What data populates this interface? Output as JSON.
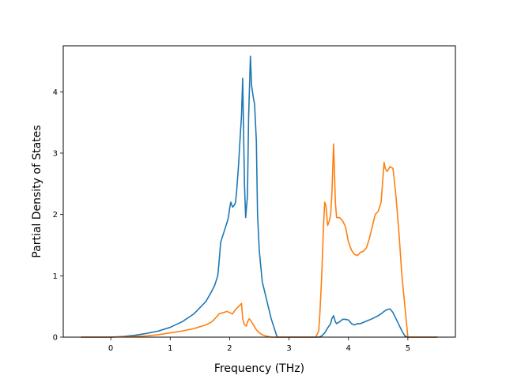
{
  "chart_data": {
    "type": "line",
    "title": "",
    "xlabel": "Frequency (THz)",
    "ylabel": "Partial Density of States",
    "xlim": [
      -0.8,
      5.8
    ],
    "ylim": [
      0,
      4.75
    ],
    "xticks": [
      "0",
      "1",
      "2",
      "3",
      "4",
      "5"
    ],
    "yticks": [
      "0",
      "1",
      "2",
      "3",
      "4"
    ],
    "grid": false,
    "legend": "none",
    "colors": {
      "series1": "#1f77b4",
      "series2": "#ff7f0e"
    },
    "series": [
      {
        "x": [
          -0.5,
          0.0,
          0.2,
          0.4,
          0.6,
          0.8,
          1.0,
          1.2,
          1.4,
          1.6,
          1.7,
          1.75,
          1.8,
          1.82,
          1.85,
          1.9,
          1.95,
          1.98,
          2.0,
          2.02,
          2.05,
          2.08,
          2.1,
          2.12,
          2.15,
          2.18,
          2.2,
          2.22,
          2.25,
          2.27,
          2.3,
          2.32,
          2.35,
          2.37,
          2.4,
          2.42,
          2.45,
          2.47,
          2.5,
          2.52,
          2.55,
          2.6,
          2.65,
          2.7,
          2.75,
          2.8,
          2.82,
          3.0,
          3.2,
          3.4,
          3.5,
          3.55,
          3.6,
          3.65,
          3.7,
          3.72,
          3.75,
          3.78,
          3.8,
          3.85,
          3.9,
          3.95,
          4.0,
          4.05,
          4.1,
          4.15,
          4.2,
          4.3,
          4.4,
          4.5,
          4.55,
          4.6,
          4.65,
          4.7,
          4.75,
          4.8,
          4.85,
          4.9,
          4.95,
          5.0,
          5.2,
          5.5
        ],
        "y": [
          0.0,
          0.0,
          0.01,
          0.03,
          0.06,
          0.1,
          0.16,
          0.25,
          0.38,
          0.58,
          0.75,
          0.85,
          1.0,
          1.2,
          1.55,
          1.7,
          1.85,
          1.95,
          2.1,
          2.2,
          2.12,
          2.15,
          2.2,
          2.4,
          2.8,
          3.3,
          3.6,
          4.22,
          2.5,
          1.95,
          2.3,
          3.6,
          4.58,
          4.1,
          3.9,
          3.8,
          3.2,
          2.0,
          1.4,
          1.2,
          0.9,
          0.7,
          0.5,
          0.3,
          0.15,
          0.0,
          0.0,
          0.0,
          0.0,
          0.0,
          0.0,
          0.02,
          0.07,
          0.15,
          0.22,
          0.3,
          0.35,
          0.25,
          0.22,
          0.25,
          0.29,
          0.29,
          0.28,
          0.22,
          0.2,
          0.22,
          0.22,
          0.26,
          0.3,
          0.35,
          0.38,
          0.42,
          0.45,
          0.46,
          0.4,
          0.3,
          0.2,
          0.1,
          0.02,
          0.0,
          0.0,
          0.0
        ]
      },
      {
        "x": [
          -0.5,
          0.0,
          0.4,
          0.6,
          0.8,
          1.0,
          1.2,
          1.4,
          1.6,
          1.7,
          1.75,
          1.8,
          1.82,
          1.85,
          1.9,
          1.95,
          2.0,
          2.05,
          2.1,
          2.15,
          2.2,
          2.22,
          2.25,
          2.28,
          2.3,
          2.33,
          2.35,
          2.4,
          2.45,
          2.5,
          2.55,
          2.6,
          2.65,
          2.7,
          2.75,
          2.8,
          3.0,
          3.2,
          3.4,
          3.45,
          3.5,
          3.52,
          3.55,
          3.58,
          3.6,
          3.62,
          3.65,
          3.68,
          3.7,
          3.72,
          3.75,
          3.78,
          3.8,
          3.85,
          3.9,
          3.95,
          4.0,
          4.05,
          4.1,
          4.15,
          4.2,
          4.25,
          4.3,
          4.35,
          4.4,
          4.45,
          4.5,
          4.55,
          4.58,
          4.6,
          4.62,
          4.65,
          4.7,
          4.75,
          4.8,
          4.85,
          4.9,
          4.95,
          5.0,
          5.2,
          5.5
        ],
        "y": [
          0.0,
          0.0,
          0.01,
          0.02,
          0.04,
          0.07,
          0.1,
          0.14,
          0.2,
          0.25,
          0.3,
          0.35,
          0.38,
          0.39,
          0.4,
          0.42,
          0.4,
          0.38,
          0.45,
          0.5,
          0.55,
          0.3,
          0.2,
          0.18,
          0.25,
          0.3,
          0.28,
          0.2,
          0.12,
          0.07,
          0.04,
          0.02,
          0.01,
          0.0,
          0.0,
          0.0,
          0.0,
          0.0,
          0.0,
          0.0,
          0.1,
          0.4,
          1.0,
          1.8,
          2.2,
          2.15,
          1.82,
          1.9,
          2.0,
          2.3,
          3.15,
          2.2,
          1.95,
          1.95,
          1.9,
          1.8,
          1.55,
          1.42,
          1.35,
          1.33,
          1.38,
          1.4,
          1.45,
          1.6,
          1.8,
          2.0,
          2.05,
          2.2,
          2.6,
          2.85,
          2.75,
          2.7,
          2.78,
          2.75,
          2.3,
          1.7,
          1.0,
          0.5,
          0.0,
          0.0,
          0.0
        ]
      }
    ]
  }
}
